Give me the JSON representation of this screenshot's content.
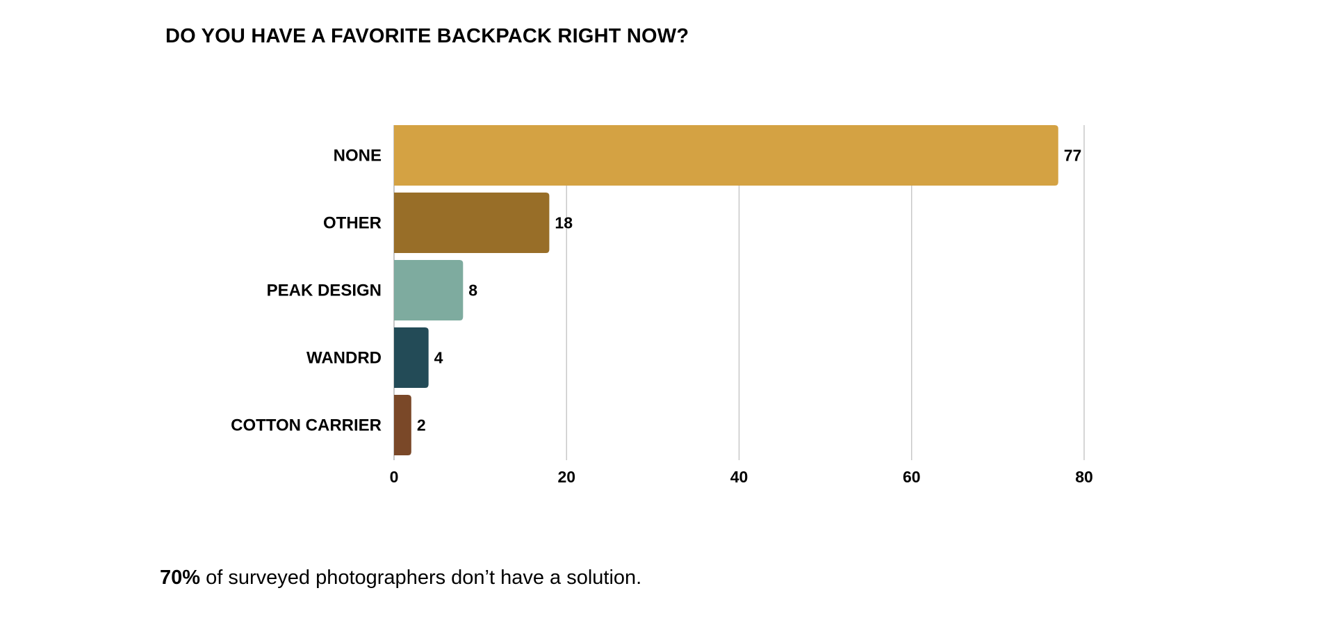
{
  "chart_data": {
    "type": "bar",
    "orientation": "horizontal",
    "title": "DO YOU HAVE A FAVORITE BACKPACK RIGHT NOW?",
    "categories": [
      "NONE",
      "OTHER",
      "PEAK DESIGN",
      "WANDRD",
      "COTTON CARRIER"
    ],
    "values": [
      77,
      18,
      8,
      4,
      2
    ],
    "colors": [
      "#D4A243",
      "#986E28",
      "#7EAB9F",
      "#234B57",
      "#7A4828"
    ],
    "xlim": [
      0,
      80
    ],
    "xticks": [
      0,
      20,
      40,
      60,
      80
    ],
    "xlabel": "",
    "ylabel": "",
    "grid": "vertical",
    "gridline_color": "#C8C8C8",
    "data_labels": true
  },
  "footnote": {
    "stat": "70%",
    "text": " of surveyed photographers don’t have a solution."
  }
}
